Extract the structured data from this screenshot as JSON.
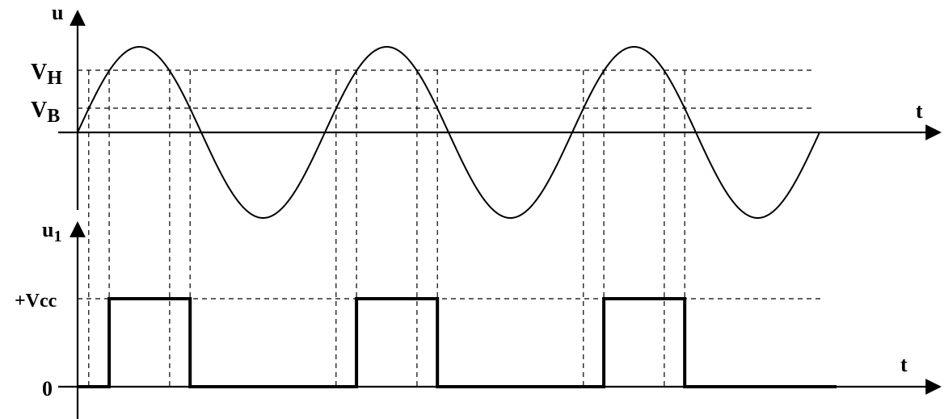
{
  "labels": {
    "top_y_axis": "u",
    "top_x_axis": "t",
    "upper_threshold": {
      "main": "V",
      "sub": "H"
    },
    "lower_threshold": {
      "main": "V",
      "sub": "B"
    },
    "bottom_y_axis": {
      "main": "u",
      "sub": "1"
    },
    "bottom_x_axis": "t",
    "supply_level": "+Vcc",
    "zero_level": "0"
  },
  "signals": {
    "input": {
      "shape": "sine",
      "cycles": 3,
      "amplitude": 1.0,
      "upper_threshold": 0.72,
      "lower_threshold": 0.28
    },
    "output": {
      "shape": "pulse",
      "high_level": 1.0,
      "low_level": 0.0,
      "pulse_count": 3
    }
  }
}
